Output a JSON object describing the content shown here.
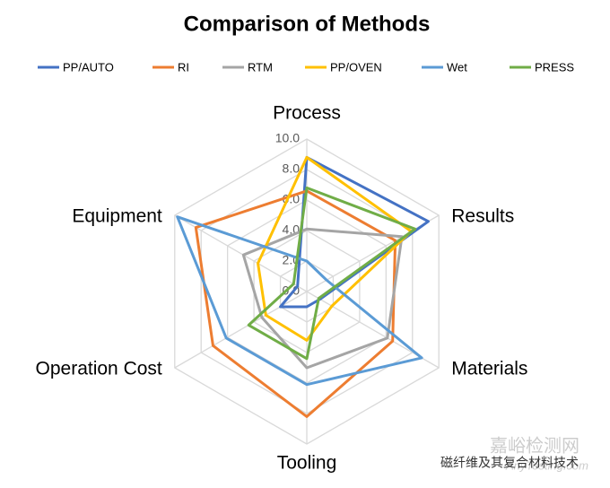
{
  "chart_data": {
    "type": "radar",
    "title": "Comparison of Methods",
    "categories": [
      "Process",
      "Results",
      "Materials",
      "Tooling",
      "Operation Cost",
      "Equipment"
    ],
    "ylim": [
      0,
      10
    ],
    "yticks": [
      {
        "value": 0,
        "label": "0.0"
      },
      {
        "value": 2,
        "label": "2.0"
      },
      {
        "value": 4,
        "label": "4.0"
      },
      {
        "value": 6,
        "label": "6.0"
      },
      {
        "value": 8,
        "label": "8.0"
      },
      {
        "value": 10,
        "label": "10.0"
      }
    ],
    "grid": true,
    "legend": "top",
    "series": [
      {
        "name": "PP/AUTO",
        "color": "#4472c4",
        "values": [
          8.8,
          9.2,
          1,
          1,
          2,
          0.7
        ]
      },
      {
        "name": "RI",
        "color": "#ed7d31",
        "values": [
          6.6,
          6.7,
          6.5,
          8.2,
          7.1,
          8.4
        ]
      },
      {
        "name": "RTM",
        "color": "#a5a5a5",
        "values": [
          4.1,
          7.2,
          6.1,
          5,
          3.4,
          4.8
        ]
      },
      {
        "name": "PP/OVEN",
        "color": "#ffc000",
        "values": [
          8.8,
          7.9,
          1.9,
          3.2,
          3.1,
          3.7
        ]
      },
      {
        "name": "Wet",
        "color": "#5b9bd5",
        "values": [
          2,
          1.5,
          8.7,
          6.1,
          6.1,
          9.8
        ]
      },
      {
        "name": "PRESS",
        "color": "#70ad47",
        "values": [
          6.8,
          8.2,
          0.9,
          4.4,
          4.4,
          1
        ]
      }
    ]
  },
  "watermark": {
    "site": "嘉峪检测网",
    "url": "AnyTesting.com",
    "account": "磁纤维及其复合材料技术"
  }
}
